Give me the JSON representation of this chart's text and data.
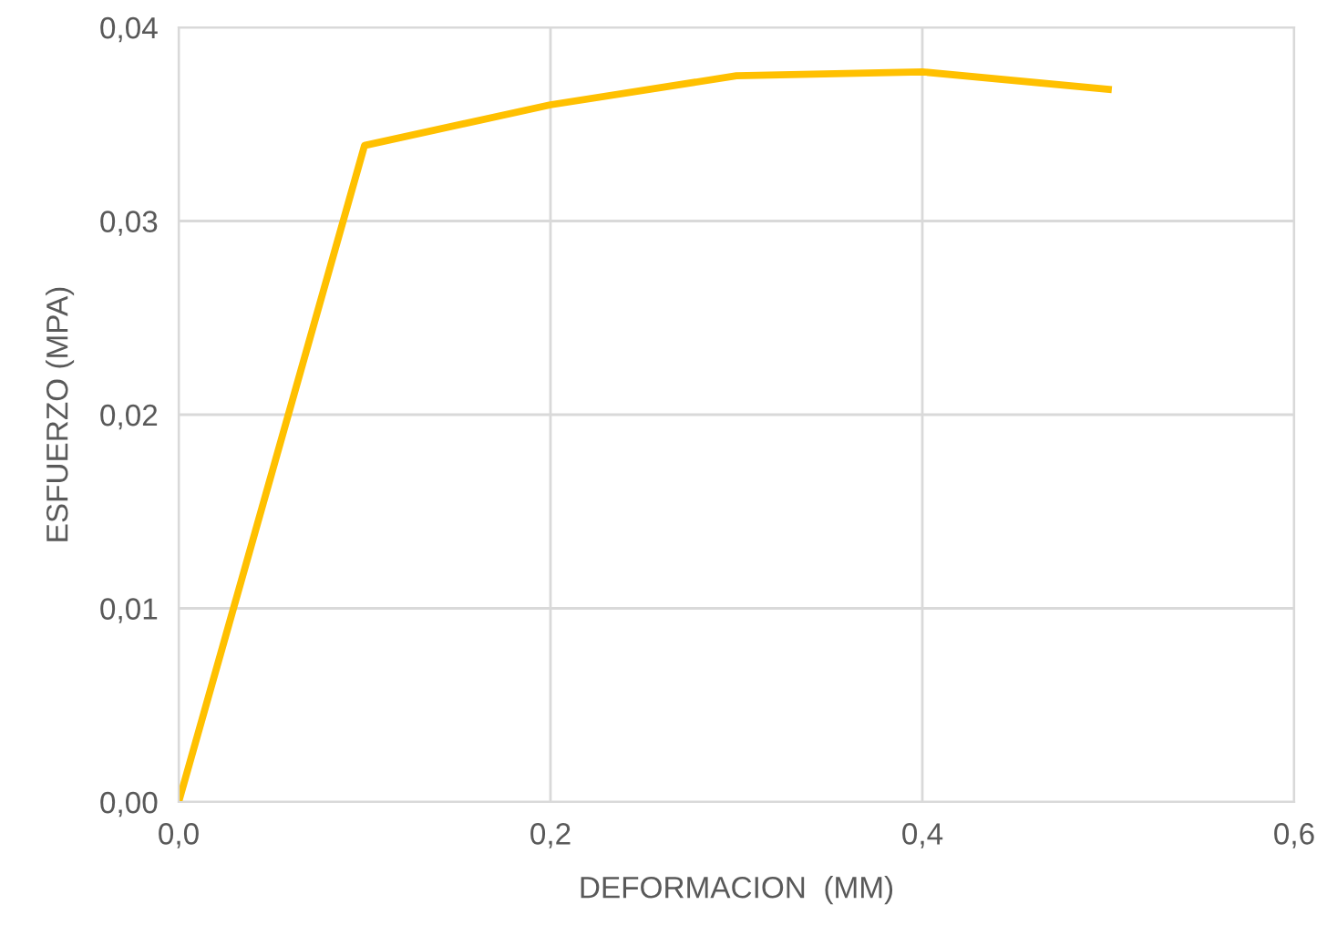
{
  "chart_data": {
    "type": "line",
    "xlabel": "DEFORMACION  (MM)",
    "ylabel": "ESFUERZO (MPA)",
    "x": [
      0,
      0.1,
      0.2,
      0.3,
      0.4,
      0.5
    ],
    "series": [
      {
        "color": "#ffc000",
        "values": [
          0,
          0.0339,
          0.036,
          0.0375,
          0.0377,
          0.0368
        ]
      }
    ],
    "xlim": [
      0,
      0.6
    ],
    "ylim": [
      0,
      0.04
    ],
    "xticks": [
      {
        "value": 0,
        "label": "0,0"
      },
      {
        "value": 0.2,
        "label": "0,2"
      },
      {
        "value": 0.4,
        "label": "0,4"
      },
      {
        "value": 0.6,
        "label": "0,6"
      }
    ],
    "yticks": [
      {
        "value": 0,
        "label": "0,00"
      },
      {
        "value": 0.01,
        "label": "0,01"
      },
      {
        "value": 0.02,
        "label": "0,02"
      },
      {
        "value": 0.03,
        "label": "0,03"
      },
      {
        "value": 0.04,
        "label": "0,04"
      }
    ],
    "grid": true,
    "marker": "none",
    "line_style": "solid"
  }
}
